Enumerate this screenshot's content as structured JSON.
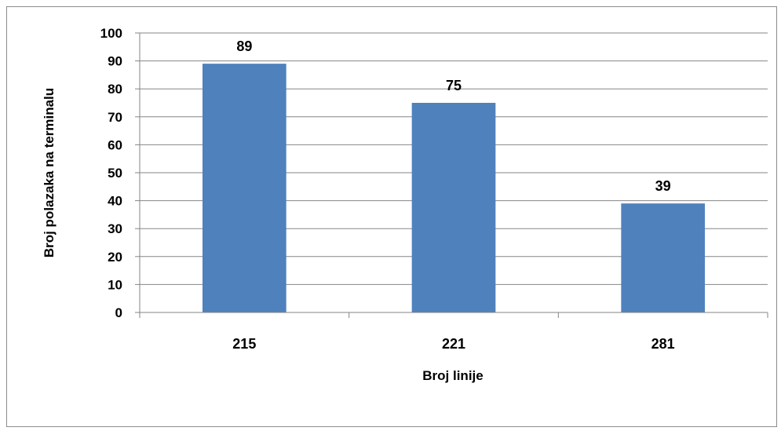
{
  "chart_data": {
    "type": "bar",
    "categories": [
      "215",
      "221",
      "281"
    ],
    "values": [
      89,
      75,
      39
    ],
    "data_labels": [
      "89",
      "75",
      "39"
    ],
    "xlabel": "Broj linije",
    "ylabel": "Broj polazaka na terminalu",
    "ylim": [
      0,
      100
    ],
    "yticks": [
      "0",
      "10",
      "20",
      "30",
      "40",
      "50",
      "60",
      "70",
      "80",
      "90",
      "100"
    ],
    "grid": true,
    "legend": "none",
    "colors": {
      "bar": "#4f81bd",
      "grid": "#868686",
      "axis": "#868686"
    }
  }
}
